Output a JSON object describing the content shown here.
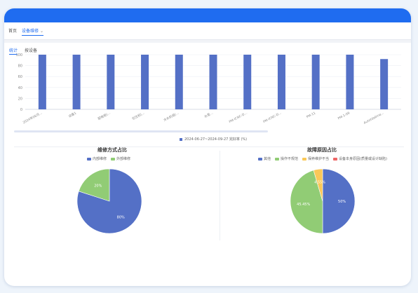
{
  "tabs": [
    {
      "label": "首页",
      "active": false
    },
    {
      "label": "设备维修",
      "active": true
    }
  ],
  "subtabs": [
    {
      "label": "统计",
      "active": true
    },
    {
      "label": "按设备",
      "active": false
    }
  ],
  "colors": {
    "header": "#1f6cf0",
    "blue": "#5470c6",
    "green": "#91cc75",
    "yellow": "#fac858",
    "red": "#ee6666"
  },
  "chart_data": [
    {
      "type": "bar",
      "categories": [
        "2024年06月...",
        "设备1",
        "配电柜(...",
        "空压机(...",
        "冷水机组(...",
        "水泵...",
        "PM-ICNC-D...",
        "PM-ICNC-D...",
        "PM-11",
        "PM-1-09",
        "Autotdabine..."
      ],
      "values": [
        100,
        100,
        100,
        100,
        100,
        100,
        100,
        100,
        100,
        100,
        92
      ],
      "ylim": [
        0,
        100
      ],
      "yticks": [
        0,
        20,
        40,
        60,
        80,
        100
      ],
      "legend": "2024-06-27~2024-09-27 完好率 (%)",
      "grid": true
    },
    {
      "type": "pie",
      "title": "维修方式占比",
      "series": [
        {
          "name": "内部维修",
          "value": 80,
          "label": "80%",
          "color": "#5470c6"
        },
        {
          "name": "外部维修",
          "value": 20,
          "label": "20%",
          "color": "#91cc75"
        }
      ]
    },
    {
      "type": "pie",
      "title": "故障原因占比",
      "series": [
        {
          "name": "其他",
          "value": 50,
          "label": "50%",
          "color": "#5470c6"
        },
        {
          "name": "操作不规范",
          "value": 45.45,
          "label": "45.45%",
          "color": "#91cc75"
        },
        {
          "name": "保养维护不当",
          "value": 4.55,
          "label": "4.55%",
          "color": "#fac858"
        },
        {
          "name": "设备本身原因(质量或设计缺陷)",
          "value": 0,
          "label": "",
          "color": "#ee6666"
        }
      ]
    }
  ]
}
